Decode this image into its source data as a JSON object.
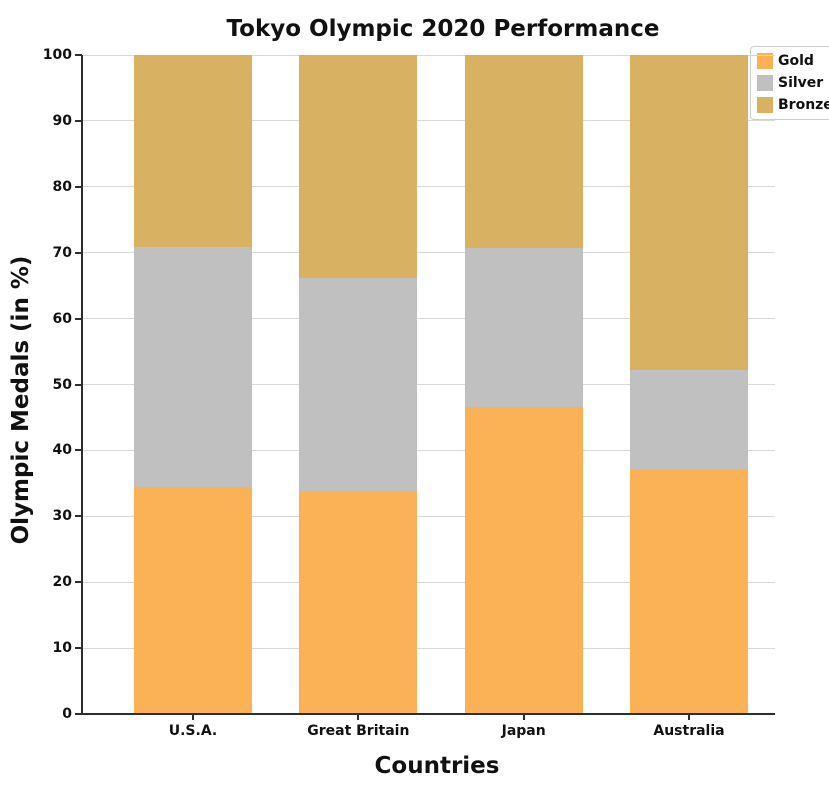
{
  "chart_data": {
    "type": "bar",
    "stacked": true,
    "title": "Tokyo Olympic 2020 Performance",
    "xlabel": "Countries",
    "ylabel": "Olympic Medals (in %)",
    "categories": [
      "U.S.A.",
      "Great Britain",
      "Japan",
      "Australia"
    ],
    "series": [
      {
        "name": "Gold",
        "color": "#FBB257",
        "values": [
          34.5,
          33.8,
          46.6,
          37.0
        ]
      },
      {
        "name": "Silver",
        "color": "#C0C0C0",
        "values": [
          36.3,
          32.3,
          24.1,
          15.2
        ]
      },
      {
        "name": "Bronze",
        "color": "#D8B262",
        "values": [
          29.2,
          33.9,
          29.3,
          47.8
        ]
      }
    ],
    "ylim": [
      0,
      100
    ],
    "yticks": [
      0,
      10,
      20,
      30,
      40,
      50,
      60,
      70,
      80,
      90,
      100
    ],
    "grid": true,
    "legend_position": "upper right",
    "legend_labels": [
      "Gold",
      "Silver",
      "Bronze"
    ]
  }
}
